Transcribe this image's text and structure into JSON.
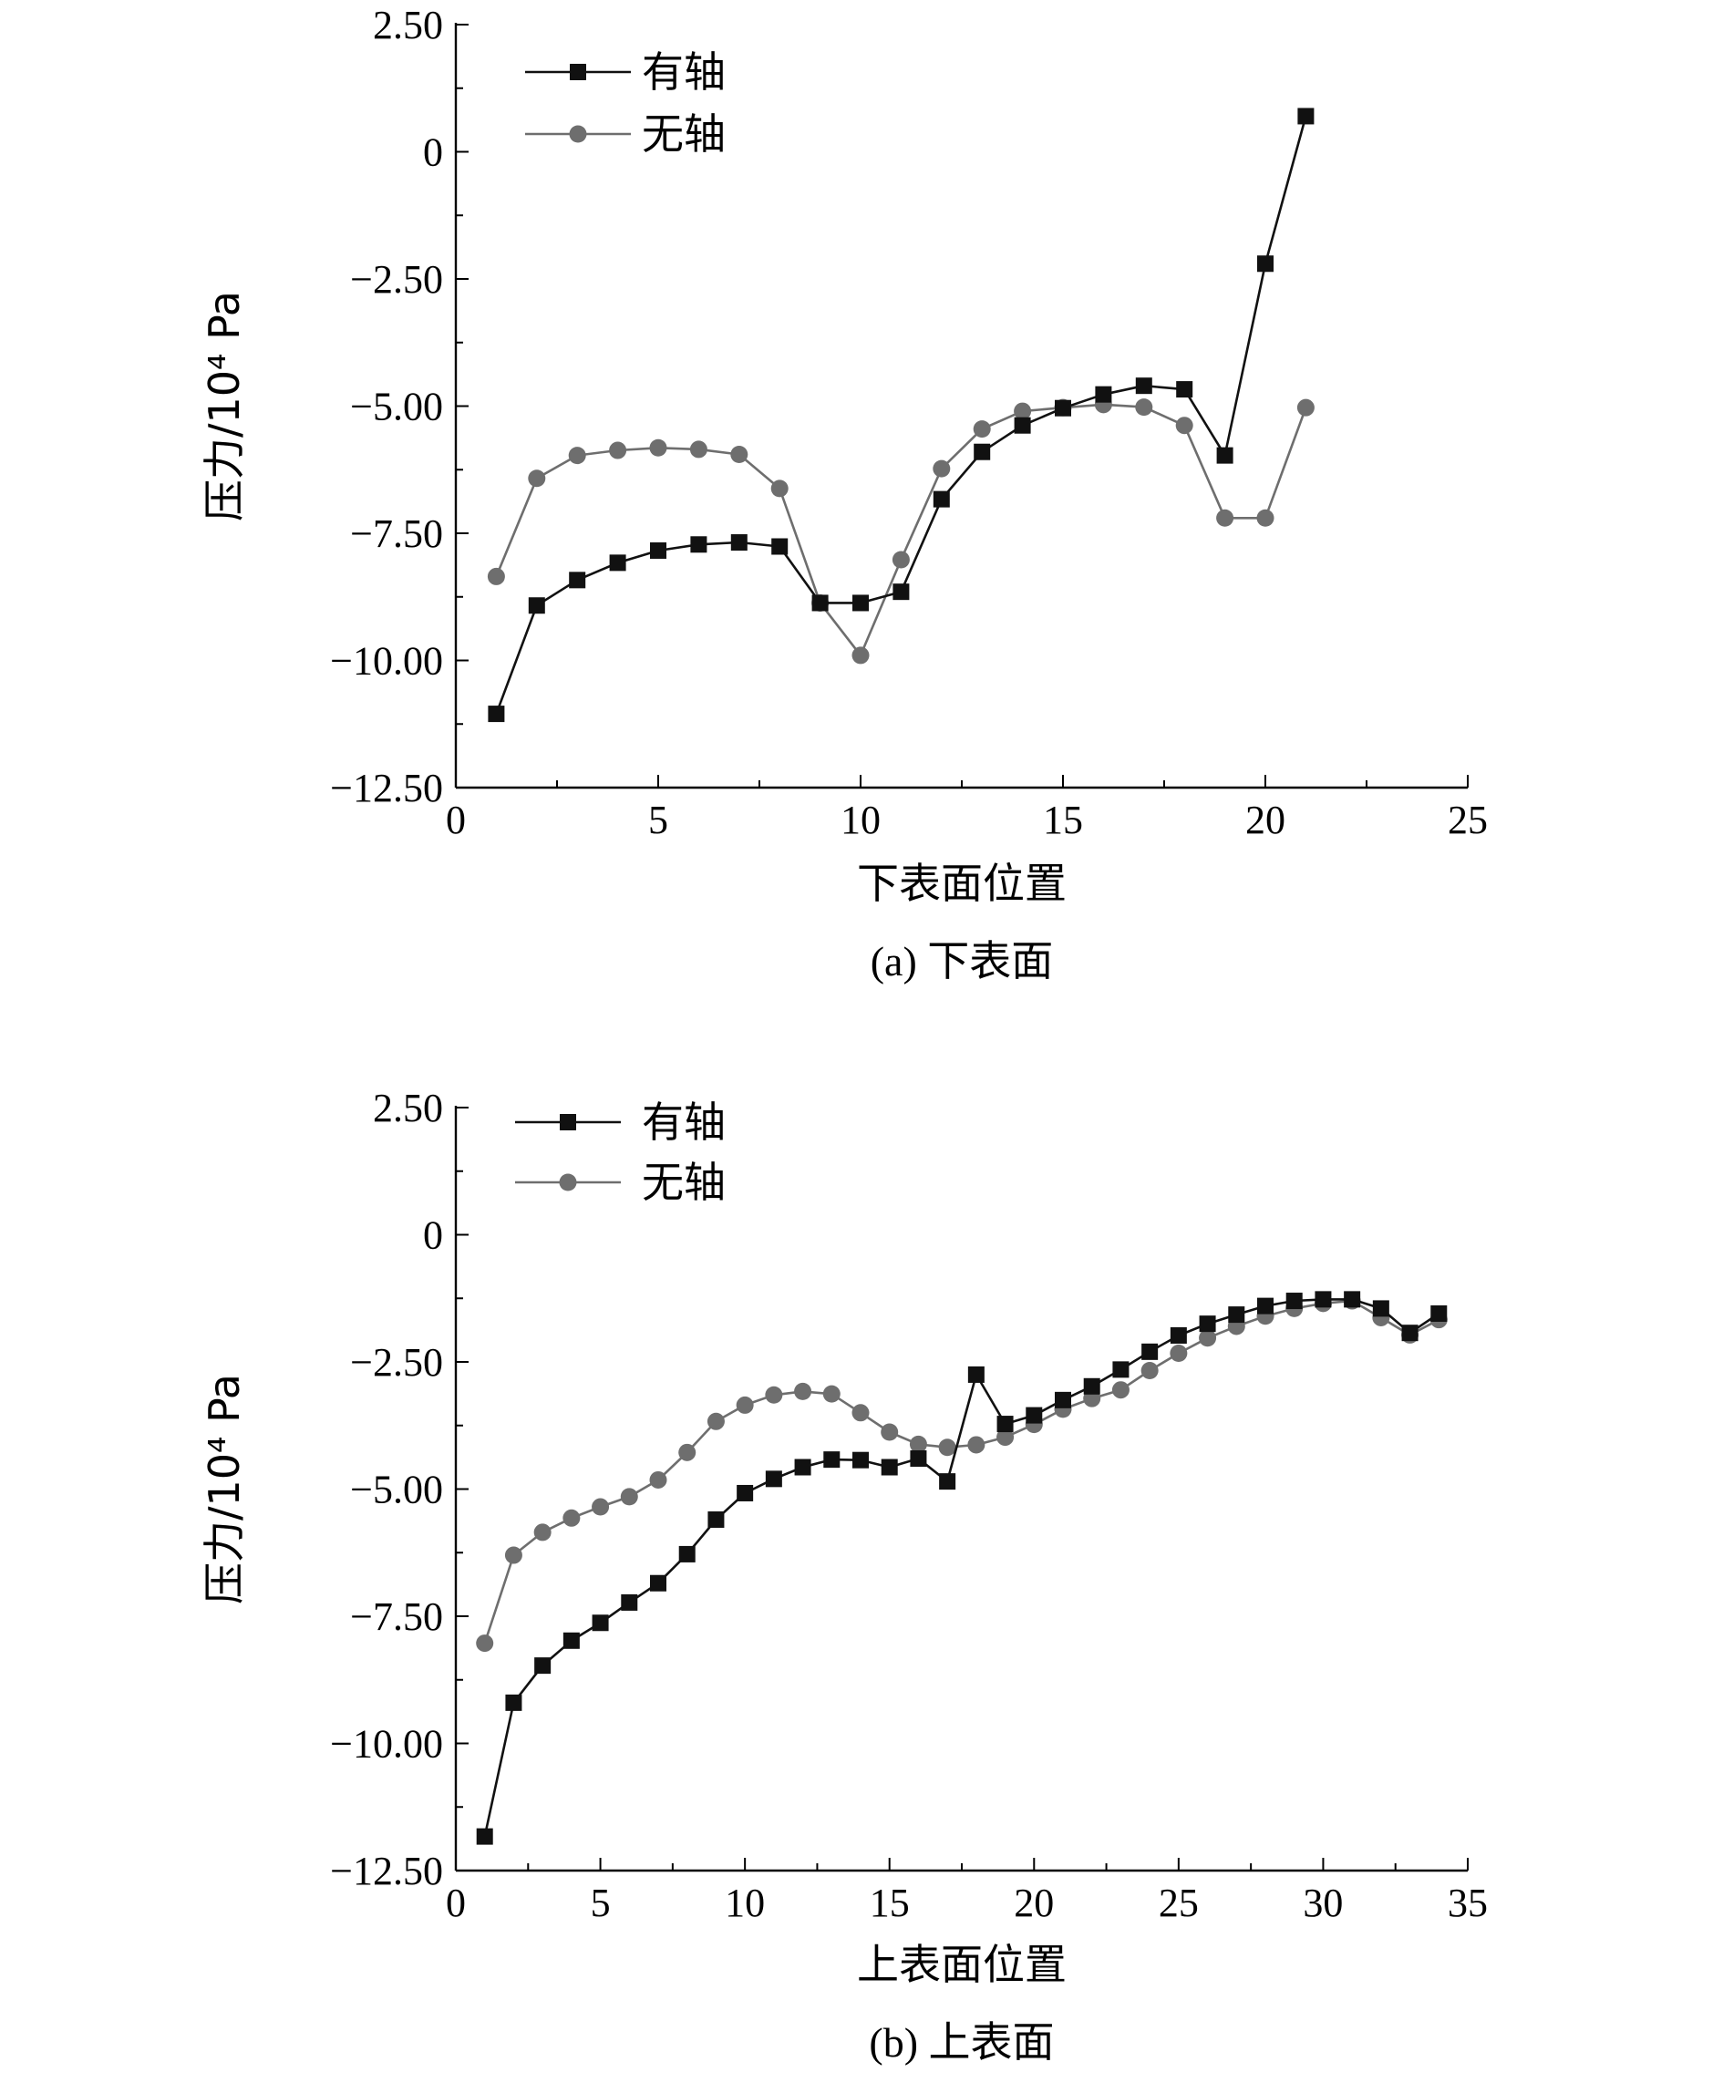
{
  "colors": {
    "series_with_shaft": "#111111",
    "series_without_shaft": "#6e6e6e",
    "axis": "#000000"
  },
  "chart_data": [
    {
      "type": "line",
      "panel": "a",
      "caption": "(a) 下表面",
      "xlabel": "下表面位置",
      "ylabel": "压力/10⁴ Pa",
      "xlim": [
        0,
        25
      ],
      "ylim": [
        -12.5,
        2.5
      ],
      "xticks": [
        0,
        5,
        10,
        15,
        20,
        25
      ],
      "yticks": [
        2.5,
        0,
        -2.5,
        -5,
        -7.5,
        -10,
        -12.5
      ],
      "ytick_labels": [
        "2.50",
        "0",
        "−2.50",
        "−5.00",
        "−7.50",
        "−10.00",
        "−12.50"
      ],
      "legend_position": "top-left",
      "series": [
        {
          "name": "有轴",
          "marker": "square",
          "x": [
            1,
            2,
            3,
            4,
            5,
            6,
            7,
            8,
            9,
            10,
            11,
            12,
            13,
            14,
            15,
            16,
            17,
            18,
            19,
            20,
            21
          ],
          "values": [
            -11.05,
            -8.92,
            -8.42,
            -8.08,
            -7.84,
            -7.72,
            -7.68,
            -7.76,
            -8.87,
            -8.87,
            -8.65,
            -6.83,
            -5.9,
            -5.38,
            -5.04,
            -4.77,
            -4.6,
            -4.67,
            -5.97,
            -2.2,
            0.7
          ]
        },
        {
          "name": "无轴",
          "marker": "circle",
          "x": [
            1,
            2,
            3,
            4,
            5,
            6,
            7,
            8,
            9,
            10,
            11,
            12,
            13,
            14,
            15,
            16,
            17,
            18,
            19,
            20,
            21
          ],
          "values": [
            -8.35,
            -6.42,
            -5.97,
            -5.87,
            -5.82,
            -5.85,
            -5.95,
            -6.62,
            -8.87,
            -9.9,
            -8.02,
            -6.23,
            -5.45,
            -5.1,
            -5.03,
            -4.97,
            -5.02,
            -5.38,
            -7.2,
            -7.2,
            -5.03
          ]
        }
      ]
    },
    {
      "type": "line",
      "panel": "b",
      "caption": "(b) 上表面",
      "xlabel": "上表面位置",
      "ylabel": "压力/10⁴ Pa",
      "xlim": [
        0,
        35
      ],
      "ylim": [
        -12.5,
        2.5
      ],
      "xticks": [
        0,
        5,
        10,
        15,
        20,
        25,
        30,
        35
      ],
      "yticks": [
        2.5,
        0,
        -2.5,
        -5,
        -7.5,
        -10,
        -12.5
      ],
      "ytick_labels": [
        "2.50",
        "0",
        "−2.50",
        "−5.00",
        "−7.50",
        "−10.00",
        "−12.50"
      ],
      "legend_position": "top-left",
      "series": [
        {
          "name": "有轴",
          "marker": "square",
          "x": [
            1,
            2,
            3,
            4,
            5,
            6,
            7,
            8,
            9,
            10,
            11,
            12,
            13,
            14,
            15,
            16,
            17,
            18,
            19,
            20,
            21,
            22,
            23,
            24,
            25,
            26,
            27,
            28,
            29,
            30,
            31,
            32,
            33,
            34
          ],
          "values": [
            -11.83,
            -9.2,
            -8.47,
            -7.98,
            -7.63,
            -7.23,
            -6.85,
            -6.28,
            -5.6,
            -5.08,
            -4.8,
            -4.57,
            -4.42,
            -4.43,
            -4.57,
            -4.4,
            -4.85,
            -2.75,
            -3.72,
            -3.55,
            -3.25,
            -2.98,
            -2.65,
            -2.3,
            -1.98,
            -1.75,
            -1.57,
            -1.4,
            -1.3,
            -1.27,
            -1.27,
            -1.45,
            -1.93,
            -1.55
          ]
        },
        {
          "name": "无轴",
          "marker": "circle",
          "x": [
            1,
            2,
            3,
            4,
            5,
            6,
            7,
            8,
            9,
            10,
            11,
            12,
            13,
            14,
            15,
            16,
            17,
            18,
            19,
            20,
            21,
            22,
            23,
            24,
            25,
            26,
            27,
            28,
            29,
            30,
            31,
            32,
            33,
            34
          ],
          "values": [
            -8.03,
            -6.3,
            -5.85,
            -5.57,
            -5.35,
            -5.15,
            -4.82,
            -4.28,
            -3.67,
            -3.35,
            -3.15,
            -3.08,
            -3.13,
            -3.5,
            -3.88,
            -4.12,
            -4.18,
            -4.13,
            -3.98,
            -3.73,
            -3.43,
            -3.22,
            -3.05,
            -2.67,
            -2.33,
            -2.03,
            -1.8,
            -1.6,
            -1.45,
            -1.35,
            -1.3,
            -1.63,
            -1.97,
            -1.67
          ]
        }
      ]
    }
  ]
}
